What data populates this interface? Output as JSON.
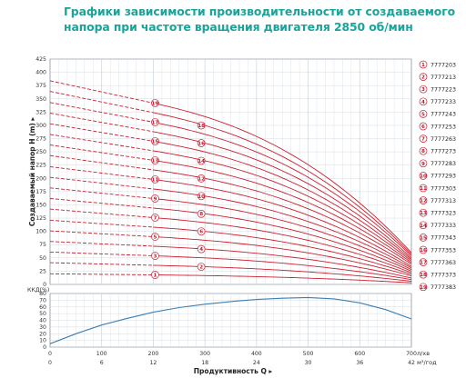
{
  "title_lines": [
    "Графики зависимости производительности от создаваемого",
    "напора при частоте вращения двигателя 2850 об/мин"
  ],
  "colors": {
    "title": "#1aa39a",
    "curve": "#cc1f2e",
    "efficiency": "#3b7fb3",
    "grid": "#c9d3dc"
  },
  "chart_data": [
    {
      "type": "line",
      "ylabel": "Создаваемый напор H (m)",
      "ylim": [
        0,
        425
      ],
      "yticks": [
        0,
        25,
        50,
        75,
        100,
        125,
        150,
        175,
        200,
        225,
        250,
        275,
        300,
        325,
        350,
        375,
        400,
        425
      ],
      "xlim": [
        0,
        42
      ],
      "x_ticks_top": [
        "0",
        "6",
        "12",
        "18",
        "24",
        "30",
        "36",
        "42"
      ],
      "x_ticks_bottom": [
        "0",
        "100",
        "200",
        "300",
        "400",
        "500",
        "600",
        "700"
      ],
      "x_unit_top": "л/хв",
      "x_unit_bottom": "м³/год",
      "xlabel": "Продуктивность Q",
      "legend_placement": "right",
      "grid": true,
      "series": [
        {
          "name": "7777203",
          "id": 1,
          "h0": 20,
          "h_at_12": 18,
          "h_at_42": 3
        },
        {
          "name": "7777213",
          "id": 2,
          "h0": 41,
          "h_at_12": 36,
          "h_at_42": 6
        },
        {
          "name": "7777223",
          "id": 3,
          "h0": 61,
          "h_at_12": 54,
          "h_at_42": 9
        },
        {
          "name": "7777233",
          "id": 4,
          "h0": 81,
          "h_at_12": 72,
          "h_at_42": 12
        },
        {
          "name": "7777243",
          "id": 5,
          "h0": 101,
          "h_at_12": 90,
          "h_at_42": 16
        },
        {
          "name": "7777253",
          "id": 6,
          "h0": 121,
          "h_at_12": 108,
          "h_at_42": 19
        },
        {
          "name": "7777263",
          "id": 7,
          "h0": 142,
          "h_at_12": 126,
          "h_at_42": 22
        },
        {
          "name": "7777273",
          "id": 8,
          "h0": 162,
          "h_at_12": 144,
          "h_at_42": 25
        },
        {
          "name": "7777283",
          "id": 9,
          "h0": 182,
          "h_at_12": 162,
          "h_at_42": 28
        },
        {
          "name": "7777293",
          "id": 10,
          "h0": 202,
          "h_at_12": 180,
          "h_at_42": 31
        },
        {
          "name": "7777303",
          "id": 11,
          "h0": 222,
          "h_at_12": 198,
          "h_at_42": 34
        },
        {
          "name": "7777313",
          "id": 12,
          "h0": 243,
          "h_at_12": 216,
          "h_at_42": 38
        },
        {
          "name": "7777323",
          "id": 13,
          "h0": 263,
          "h_at_12": 234,
          "h_at_42": 41
        },
        {
          "name": "7777333",
          "id": 14,
          "h0": 283,
          "h_at_12": 252,
          "h_at_42": 44
        },
        {
          "name": "7777343",
          "id": 15,
          "h0": 303,
          "h_at_12": 270,
          "h_at_42": 47
        },
        {
          "name": "7777353",
          "id": 16,
          "h0": 323,
          "h_at_12": 288,
          "h_at_42": 50
        },
        {
          "name": "7777363",
          "id": 17,
          "h0": 343,
          "h_at_12": 306,
          "h_at_42": 54
        },
        {
          "name": "7777373",
          "id": 18,
          "h0": 364,
          "h_at_12": 324,
          "h_at_42": 57
        },
        {
          "name": "7777383",
          "id": 19,
          "h0": 384,
          "h_at_12": 342,
          "h_at_42": 60
        }
      ]
    },
    {
      "type": "line",
      "ylabel": "ККД(%)",
      "ylim": [
        0,
        80
      ],
      "yticks": [
        0,
        10,
        20,
        30,
        40,
        50,
        60,
        70,
        80
      ],
      "xlim": [
        0,
        42
      ],
      "grid": true,
      "series": [
        {
          "x": [
            0,
            3,
            6,
            9,
            12,
            15,
            18,
            21,
            24,
            27,
            30,
            33,
            36,
            39,
            42
          ],
          "y": [
            5,
            20,
            33,
            43,
            52,
            59,
            64,
            68,
            71,
            73,
            74,
            72,
            66,
            56,
            42
          ]
        }
      ]
    }
  ]
}
